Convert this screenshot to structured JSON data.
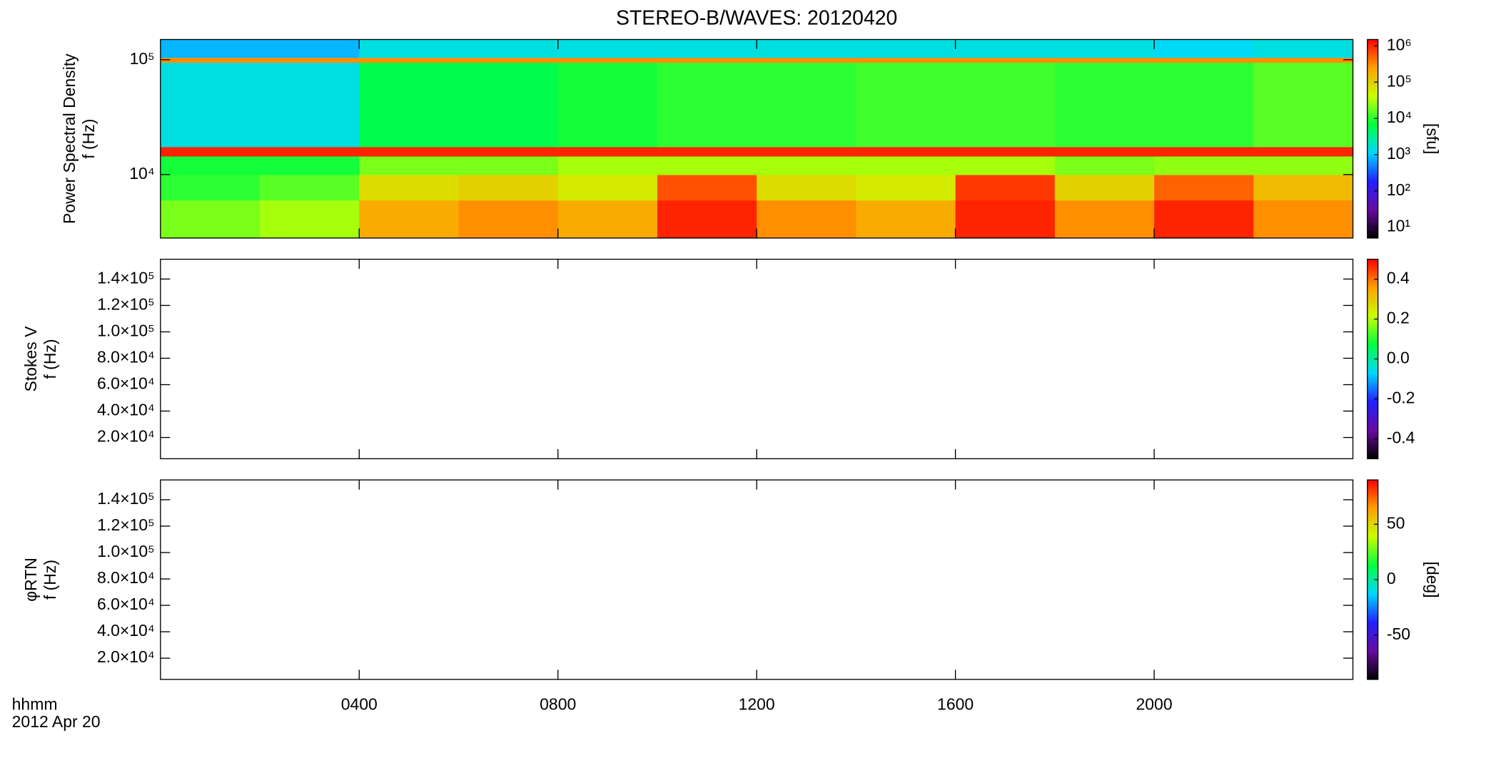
{
  "chart_data": [
    {
      "type": "heatmap",
      "title": "STEREO-B/WAVES: 20120420",
      "ylabel": [
        "Power Spectral Density",
        "f (Hz)"
      ],
      "ylog": true,
      "ylim": [
        2800,
        150000
      ],
      "yticks": [
        {
          "value": 10000,
          "label": "10⁴"
        },
        {
          "value": 100000,
          "label": "10⁵"
        }
      ],
      "xlim": [
        0,
        24
      ],
      "x_bins": [
        0,
        2,
        4,
        6,
        8,
        10,
        12,
        14,
        16,
        18,
        20,
        22,
        24
      ],
      "y_bins": [
        2800,
        6000,
        10000,
        14500,
        17500,
        95000,
        105000,
        150000
      ],
      "z": [
        [
          20000,
          30000,
          200000,
          300000,
          200000,
          1000000,
          300000,
          200000,
          1000000,
          300000,
          1000000,
          300000
        ],
        [
          10000,
          15000,
          80000,
          100000,
          60000,
          600000,
          80000,
          60000,
          800000,
          100000,
          500000,
          150000
        ],
        [
          8000,
          8000,
          20000,
          20000,
          30000,
          30000,
          30000,
          30000,
          30000,
          20000,
          25000,
          25000
        ],
        [
          1000000,
          1000000,
          1000000,
          1000000,
          1000000,
          1000000,
          1000000,
          1000000,
          1000000,
          1000000,
          1000000,
          1000000
        ],
        [
          1500,
          1500,
          6000,
          6000,
          8000,
          10000,
          10000,
          12000,
          12000,
          10000,
          10000,
          15000
        ],
        [
          300000,
          300000,
          300000,
          300000,
          300000,
          300000,
          300000,
          300000,
          300000,
          300000,
          300000,
          300000
        ],
        [
          800,
          800,
          1500,
          1500,
          1500,
          1500,
          1500,
          1500,
          1500,
          1500,
          1200,
          1500
        ]
      ],
      "clog": true,
      "clim": [
        5,
        1500000
      ],
      "cticks": [
        {
          "value": 10,
          "label": "10¹"
        },
        {
          "value": 100,
          "label": "10²"
        },
        {
          "value": 1000,
          "label": "10³"
        },
        {
          "value": 10000,
          "label": "10⁴"
        },
        {
          "value": 100000,
          "label": "10⁵"
        },
        {
          "value": 1000000,
          "label": "10⁶"
        }
      ],
      "clabel": "[sfu]",
      "colormap": [
        "#000000",
        "#6a0aa0",
        "#2020ff",
        "#00d8ff",
        "#00ff40",
        "#c8ff00",
        "#ffa000",
        "#ff0000"
      ]
    },
    {
      "type": "heatmap",
      "ylabel": [
        "Stokes V",
        "f (Hz)"
      ],
      "ylim": [
        3900,
        155000
      ],
      "yticks": [
        {
          "value": 20000,
          "label": "2.0×10⁴"
        },
        {
          "value": 40000,
          "label": "4.0×10⁴"
        },
        {
          "value": 60000,
          "label": "6.0×10⁴"
        },
        {
          "value": 80000,
          "label": "8.0×10⁴"
        },
        {
          "value": 100000,
          "label": "1.0×10⁵"
        },
        {
          "value": 120000,
          "label": "1.2×10⁵"
        },
        {
          "value": 140000,
          "label": "1.4×10⁵"
        }
      ],
      "xlim": [
        0,
        24
      ],
      "clim": [
        -0.5,
        0.5
      ],
      "cticks": [
        -0.4,
        -0.2,
        {
          "value": 0,
          "label": "0.0"
        },
        0.2,
        0.4
      ],
      "colormap": [
        "#000000",
        "#6a0aa0",
        "#2020ff",
        "#00d8ff",
        "#00ff40",
        "#c8ff00",
        "#ffa000",
        "#ff0000"
      ]
    },
    {
      "type": "heatmap",
      "ylabel": [
        "φRTN",
        "f (Hz)"
      ],
      "ylim": [
        3900,
        155000
      ],
      "yticks": [
        {
          "value": 20000,
          "label": "2.0×10⁴"
        },
        {
          "value": 40000,
          "label": "4.0×10⁴"
        },
        {
          "value": 60000,
          "label": "6.0×10⁴"
        },
        {
          "value": 80000,
          "label": "8.0×10⁴"
        },
        {
          "value": 100000,
          "label": "1.0×10⁵"
        },
        {
          "value": 120000,
          "label": "1.2×10⁵"
        },
        {
          "value": 140000,
          "label": "1.4×10⁵"
        }
      ],
      "xlim": [
        0,
        24
      ],
      "xticks": [
        {
          "value": 4,
          "label": "0400"
        },
        {
          "value": 8,
          "label": "0800"
        },
        {
          "value": 12,
          "label": "1200"
        },
        {
          "value": 16,
          "label": "1600"
        },
        {
          "value": 20,
          "label": "2000"
        }
      ],
      "xlabel": "hhmm",
      "xsublabel": "2012 Apr 20",
      "clim": [
        -90,
        90
      ],
      "cticks": [
        -50,
        0,
        50
      ],
      "clabel": "[deg]",
      "colormap": [
        "#000000",
        "#6a0aa0",
        "#2020ff",
        "#00d8ff",
        "#00ff40",
        "#c8ff00",
        "#ffa000",
        "#ff0000"
      ]
    }
  ]
}
